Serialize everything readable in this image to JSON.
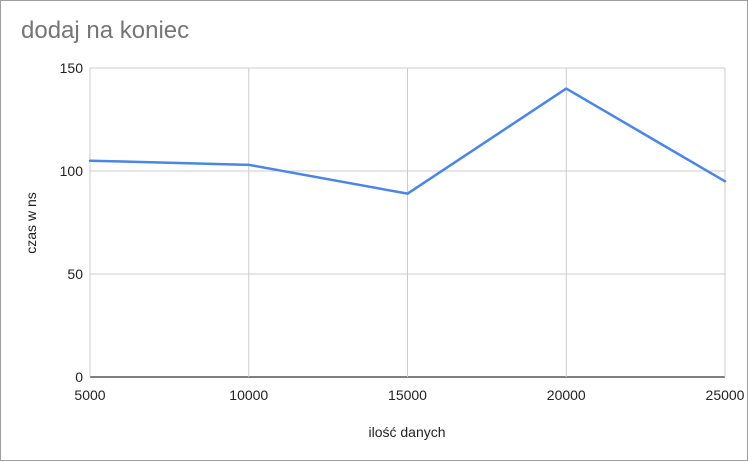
{
  "chart_data": {
    "type": "line",
    "title": "dodaj na koniec",
    "xlabel": "ilość danych",
    "ylabel": "czas w ns",
    "x": [
      5000,
      10000,
      15000,
      20000,
      25000
    ],
    "series": [
      {
        "values": [
          105,
          103,
          89,
          140,
          95
        ],
        "color": "#4a86e8"
      }
    ],
    "xlim": [
      5000,
      25000
    ],
    "ylim": [
      0,
      150
    ],
    "xticks": [
      "5000",
      "10000",
      "15000",
      "20000",
      "25000"
    ],
    "yticks": [
      "0",
      "50",
      "100",
      "150"
    ],
    "grid": true,
    "legend": "none"
  }
}
